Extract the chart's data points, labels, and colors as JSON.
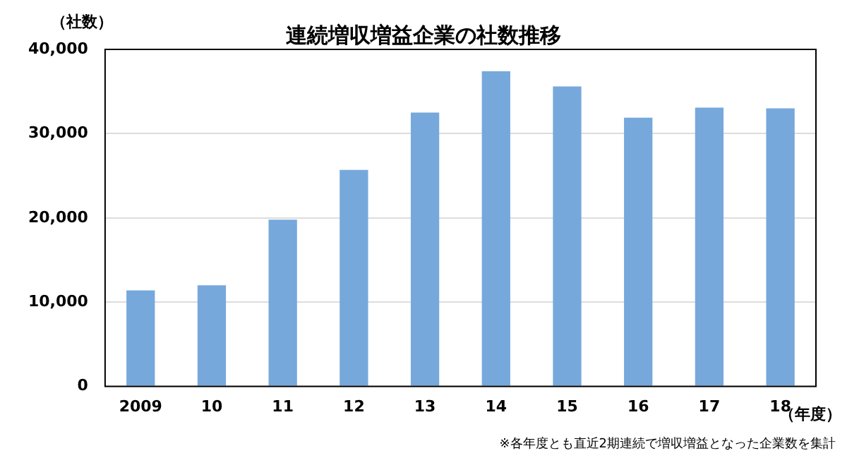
{
  "chart_data": {
    "type": "bar",
    "title": "連続増収増益企業の社数推移",
    "ylabel": "（社数）",
    "xlabel": "（年度）",
    "annotations": [
      "※各年度とも直近2期連続で増収増益となった企業数を集計"
    ],
    "categories": [
      "2009",
      "10",
      "11",
      "12",
      "13",
      "14",
      "15",
      "16",
      "17",
      "18"
    ],
    "values": [
      11400,
      12000,
      19800,
      25700,
      32500,
      37400,
      35600,
      31900,
      33100,
      33000
    ],
    "color": "#76a8dc",
    "ylim": [
      0,
      40000
    ],
    "yticks": [
      {
        "value": 0,
        "label": "0"
      },
      {
        "value": 10000,
        "label": "10,000"
      },
      {
        "value": 20000,
        "label": "20,000"
      },
      {
        "value": 30000,
        "label": "30,000"
      },
      {
        "value": 40000,
        "label": "40,000"
      }
    ],
    "grid": "y",
    "legend": false
  }
}
